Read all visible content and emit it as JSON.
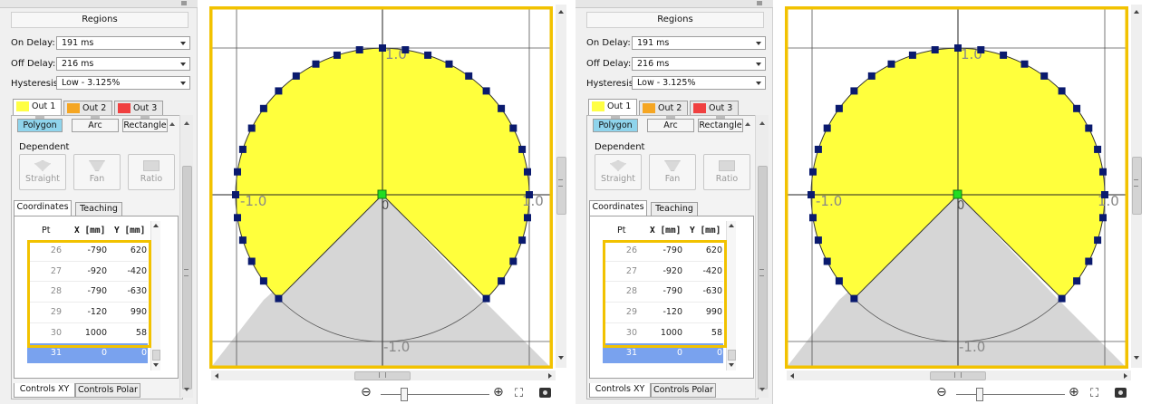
{
  "panels": [
    {
      "regions_title": "Regions",
      "on_delay": {
        "label": "On Delay:",
        "value": "191 ms"
      },
      "off_delay": {
        "label": "Off Delay:",
        "value": "216 ms"
      },
      "hysteresis": {
        "label": "Hysteresis:",
        "value": "Low  - 3.125%"
      },
      "outputs": [
        {
          "label": "Out 1",
          "color": "#ffff44"
        },
        {
          "label": "Out 2",
          "color": "#f5a623"
        },
        {
          "label": "Out 3",
          "color": "#f04040"
        }
      ],
      "shape_tabs": [
        "Polygon",
        "Arc",
        "Rectangle"
      ],
      "dependent": {
        "label": "Dependent",
        "buttons": [
          "Straight",
          "Fan",
          "Ratio"
        ]
      },
      "coord_tabs": [
        "Coordinates",
        "Teaching"
      ],
      "table": {
        "headers": [
          "Pt",
          "X [mm]",
          "Y [mm]"
        ],
        "rows": [
          {
            "pt": "26",
            "x": "-790",
            "y": "620"
          },
          {
            "pt": "27",
            "x": "-920",
            "y": "-420"
          },
          {
            "pt": "28",
            "x": "-790",
            "y": "-630"
          },
          {
            "pt": "29",
            "x": "-120",
            "y": "990"
          },
          {
            "pt": "30",
            "x": "1000",
            "y": "58"
          },
          {
            "pt": "31",
            "x": "0",
            "y": "0"
          }
        ],
        "selected_row": 5
      },
      "bottom_tabs": [
        "Controls XY",
        "Controls Polar"
      ],
      "plot_labels": {
        "top": "1.0",
        "left": "-1.0",
        "right": "1.0",
        "bottom": "-1.0",
        "origin": "0"
      }
    },
    {
      "regions_title": "Regions",
      "on_delay": {
        "label": "On Delay:",
        "value": "191 ms"
      },
      "off_delay": {
        "label": "Off Delay:",
        "value": "216 ms"
      },
      "hysteresis": {
        "label": "Hysteresis:",
        "value": "Low  - 3.125%"
      },
      "outputs": [
        {
          "label": "Out 1",
          "color": "#ffff44"
        },
        {
          "label": "Out 2",
          "color": "#f5a623"
        },
        {
          "label": "Out 3",
          "color": "#f04040"
        }
      ],
      "shape_tabs": [
        "Polygon",
        "Arc",
        "Rectangle"
      ],
      "dependent": {
        "label": "Dependent",
        "buttons": [
          "Straight",
          "Fan",
          "Ratio"
        ]
      },
      "coord_tabs": [
        "Coordinates",
        "Teaching"
      ],
      "table": {
        "headers": [
          "Pt",
          "X [mm]",
          "Y [mm]"
        ],
        "rows": [
          {
            "pt": "26",
            "x": "-790",
            "y": "620"
          },
          {
            "pt": "27",
            "x": "-920",
            "y": "-420"
          },
          {
            "pt": "28",
            "x": "-790",
            "y": "-630"
          },
          {
            "pt": "29",
            "x": "-120",
            "y": "990"
          },
          {
            "pt": "30",
            "x": "1000",
            "y": "58"
          },
          {
            "pt": "31",
            "x": "0",
            "y": "0"
          }
        ],
        "selected_row": 5
      },
      "bottom_tabs": [
        "Controls XY",
        "Controls Polar"
      ],
      "plot_labels": {
        "top": "1.0",
        "left": "-1.0",
        "right": "1.0",
        "bottom": "-1.0",
        "origin": "0"
      }
    }
  ],
  "colors": {
    "region_fill": "#ffff3c",
    "sensor_shadow": "#d6d6d6",
    "vertex": "#0a1a6e",
    "origin_vertex": "#22dd22",
    "highlight": "#f2c200",
    "selected_row": "#79a2ee",
    "active_shape_tab": "#8fd4ec"
  },
  "icons": [
    "zoom-out-icon",
    "zoom-in-icon",
    "fullscreen-icon",
    "camera-icon"
  ]
}
